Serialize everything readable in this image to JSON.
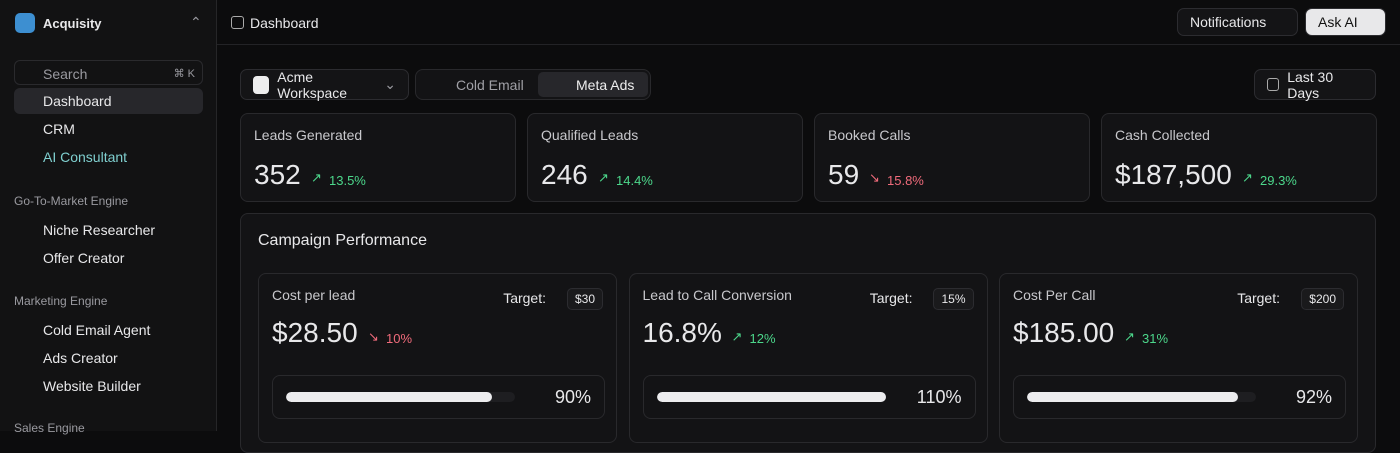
{
  "sidebar": {
    "brand": "Acquisity",
    "search": "Search",
    "shortcut": "⌘ K",
    "nav": [
      "Dashboard",
      "CRM",
      "AI Consultant"
    ],
    "sections": [
      {
        "title": "Go-To-Market Engine",
        "items": [
          "Niche Researcher",
          "Offer Creator"
        ]
      },
      {
        "title": "Marketing Engine",
        "items": [
          "Cold Email Agent",
          "Ads Creator",
          "Website Builder"
        ]
      },
      {
        "title": "Sales Engine"
      }
    ]
  },
  "header": {
    "title": "Dashboard",
    "notifications": "Notifications",
    "ask_ai": "Ask AI"
  },
  "toolbar": {
    "workspace": "Acme Workspace",
    "tabs": [
      "Cold Email",
      "Meta Ads"
    ],
    "date_range": "Last 30 Days"
  },
  "stats": [
    {
      "label": "Leads Generated",
      "value": "352",
      "change": "13.5%",
      "trend": "up"
    },
    {
      "label": "Qualified Leads",
      "value": "246",
      "change": "14.4%",
      "trend": "up"
    },
    {
      "label": "Booked Calls",
      "value": "59",
      "change": "15.8%",
      "trend": "down"
    },
    {
      "label": "Cash Collected",
      "value": "$187,500",
      "change": "29.3%",
      "trend": "up"
    }
  ],
  "campaign": {
    "title": "Campaign Performance",
    "target_label": "Target:",
    "metrics": [
      {
        "label": "Cost per lead",
        "value": "$28.50",
        "change": "10%",
        "trend": "down",
        "target": "$30",
        "progress": {
          "value": 90,
          "label": "90%"
        }
      },
      {
        "label": "Lead to Call Conversion",
        "value": "16.8%",
        "change": "12%",
        "trend": "up",
        "target": "15%",
        "progress": {
          "value": 110,
          "label": "110%"
        }
      },
      {
        "label": "Cost Per Call",
        "value": "$185.00",
        "change": "31%",
        "trend": "up",
        "target": "$200",
        "progress": {
          "value": 92,
          "label": "92%"
        }
      }
    ]
  }
}
